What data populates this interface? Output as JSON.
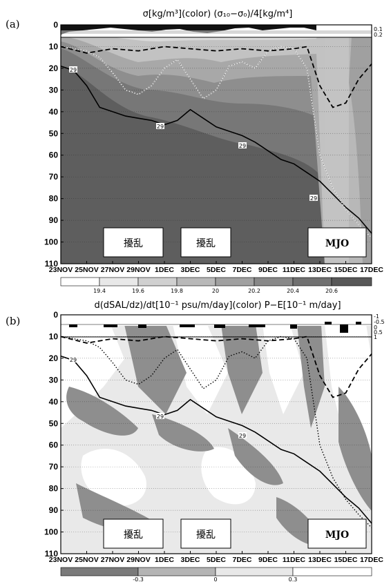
{
  "chart_data": [
    {
      "type": "heatmap",
      "panel_label": "(a)",
      "title": "σ[kg/m³](color)  (σ₁₀−σ₀)/4[kg/m⁴]",
      "y_ticks": [
        "0",
        "10",
        "20",
        "30",
        "40",
        "50",
        "60",
        "70",
        "80",
        "90",
        "100",
        "110"
      ],
      "ylim": [
        110,
        0
      ],
      "x_ticks": [
        "23NOV",
        "25NOV",
        "27NOV",
        "29NOV",
        "1DEC",
        "3DEC",
        "5DEC",
        "7DEC",
        "9DEC",
        "11DEC",
        "13DEC",
        "15DEC",
        "17DEC"
      ],
      "top_bar_ticks": [
        "0.1",
        "0.2"
      ],
      "colorbar_ticks": [
        "19.4",
        "19.6",
        "19.8",
        "20",
        "20.2",
        "20.4",
        "20.6"
      ],
      "contour_labels": [
        "29",
        "29",
        "29",
        "29",
        "29"
      ],
      "event_boxes": [
        {
          "label": "擾乱",
          "start": "24NOV",
          "end": "30NOV"
        },
        {
          "label": "擾乱",
          "start": "2DEC",
          "end": "8DEC"
        },
        {
          "label": "MJO",
          "start": "13DEC",
          "end": "17DEC"
        }
      ],
      "series": [
        {
          "style": "solid black",
          "x_day": [
            0,
            1,
            2,
            3,
            4,
            5,
            6,
            7,
            8,
            9,
            10,
            11,
            12,
            13,
            14,
            15,
            16,
            17,
            18,
            19,
            20,
            21,
            22,
            23,
            24
          ],
          "depth": [
            19,
            21,
            28,
            38,
            40,
            42,
            43,
            44,
            46,
            44,
            39,
            43,
            47,
            49,
            51,
            54,
            58,
            62,
            64,
            68,
            72,
            78,
            84,
            89,
            96
          ]
        },
        {
          "style": "dotted white",
          "x_day": [
            0,
            2,
            3,
            4,
            5,
            6,
            7,
            8,
            9,
            10,
            11,
            12,
            13,
            14,
            15,
            16,
            17,
            18,
            19,
            20,
            21,
            22,
            23,
            24
          ],
          "depth": [
            10,
            12,
            15,
            22,
            30,
            32,
            28,
            20,
            16,
            25,
            34,
            30,
            19,
            17,
            20,
            12,
            10,
            11,
            20,
            60,
            75,
            85,
            92,
            98
          ]
        },
        {
          "style": "dashed black",
          "x_day": [
            0,
            2,
            4,
            6,
            8,
            10,
            12,
            14,
            16,
            18,
            19,
            20,
            21,
            22,
            23,
            24
          ],
          "depth": [
            10,
            13,
            11,
            12,
            10,
            11,
            12,
            11,
            12,
            11,
            10,
            28,
            38,
            36,
            25,
            18
          ]
        }
      ],
      "colors": {
        "dark": "#5a5a5a",
        "mid": "#8c8c8c",
        "light": "#c8c8c8",
        "lighter": "#e6e6e6"
      }
    },
    {
      "type": "heatmap",
      "panel_label": "(b)",
      "title": "d(dSAL/dz)/dt[10⁻¹ psu/m/day](color)  P−E[10⁻¹ m/day]",
      "y_ticks": [
        "0",
        "10",
        "20",
        "30",
        "40",
        "50",
        "60",
        "70",
        "80",
        "90",
        "100",
        "110"
      ],
      "ylim": [
        110,
        0
      ],
      "x_ticks": [
        "23NOV",
        "25NOV",
        "27NOV",
        "29NOV",
        "1DEC",
        "3DEC",
        "5DEC",
        "7DEC",
        "9DEC",
        "11DEC",
        "13DEC",
        "15DEC",
        "17DEC"
      ],
      "top_bar_ticks": [
        "-1",
        "-0.5",
        "0",
        "0.5",
        "1"
      ],
      "colorbar_ticks": [
        "-0.3",
        "0",
        "0.3"
      ],
      "contour_labels": [
        "29",
        "29",
        "29",
        "29"
      ],
      "event_boxes": [
        {
          "label": "擾乱",
          "start": "24NOV",
          "end": "30NOV"
        },
        {
          "label": "擾乱",
          "start": "2DEC",
          "end": "8DEC"
        },
        {
          "label": "MJO",
          "start": "13DEC",
          "end": "17DEC"
        }
      ],
      "colors": {
        "negative": "#8c8c8c",
        "neutral": "#e8e8e8",
        "positive": "#ffffff"
      }
    }
  ]
}
